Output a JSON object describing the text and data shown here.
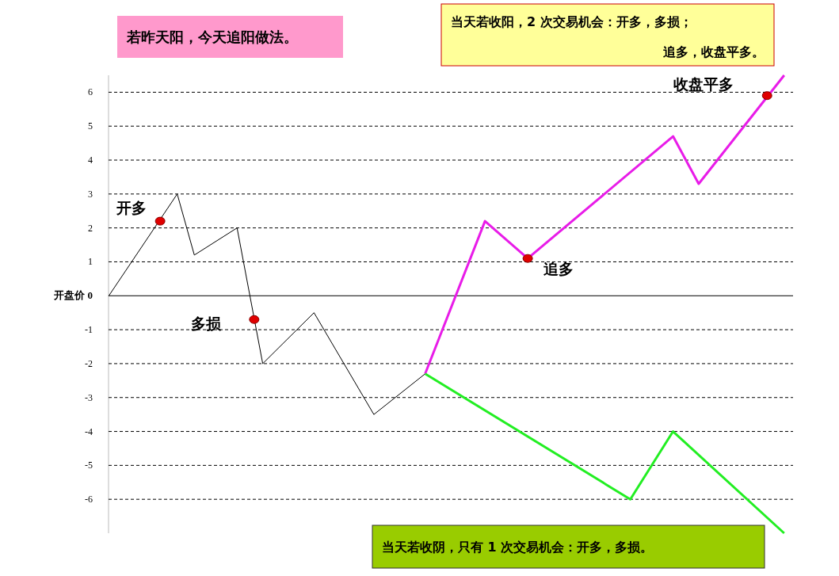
{
  "chart_data": {
    "type": "line",
    "title": "若昨天阳，今天追阳做法。",
    "annotations": [
      "当天若收阳，2 次交易机会：开多，多损；追多，收盘平多。",
      "当天若收阴，只有 1 次交易机会：开多，多损。",
      "开多",
      "多损",
      "追多",
      "收盘平多"
    ],
    "categories": [
      null,
      null,
      null,
      null,
      null,
      null,
      null,
      null,
      null,
      null,
      null,
      null,
      null,
      null,
      null,
      null,
      null,
      null,
      null,
      null,
      null,
      null,
      null,
      null,
      null,
      null,
      null,
      null,
      null,
      null,
      null,
      null,
      null,
      null,
      null,
      null,
      null,
      null,
      null,
      null,
      null,
      null,
      null,
      null,
      null,
      null,
      null,
      null,
      null,
      null,
      null,
      null,
      null,
      null,
      null,
      null,
      null,
      null,
      null,
      null,
      null,
      null,
      null,
      null,
      null,
      null,
      null,
      null,
      null,
      null,
      null,
      null,
      null,
      null,
      null,
      null,
      null,
      null,
      null,
      null,
      null
    ],
    "series": [
      {
        "color": "#000000",
        "values": [
          0,
          null,
          null,
          null,
          null,
          null,
          null,
          null,
          3,
          null,
          1.2,
          null,
          null,
          null,
          null,
          2,
          null,
          null,
          -2,
          null,
          null,
          null,
          null,
          null,
          -0.5,
          null,
          null,
          null,
          null,
          null,
          null,
          -3.5,
          null,
          null,
          null,
          null,
          null,
          -2.3,
          null,
          null,
          null,
          null,
          null,
          null,
          null,
          null,
          null,
          null,
          null,
          null,
          null,
          null,
          null,
          null,
          null,
          null,
          null,
          null,
          null,
          null,
          null,
          null,
          null,
          null,
          null,
          null,
          null,
          null,
          null,
          null,
          null,
          null,
          null,
          null,
          null,
          null,
          null,
          null,
          null,
          null,
          null
        ]
      },
      {
        "color": "#e81ce8",
        "values": [
          null,
          null,
          null,
          null,
          null,
          null,
          null,
          null,
          null,
          null,
          null,
          null,
          null,
          null,
          null,
          null,
          null,
          null,
          null,
          null,
          null,
          null,
          null,
          null,
          null,
          null,
          null,
          null,
          null,
          null,
          null,
          null,
          null,
          null,
          null,
          null,
          null,
          -2.3,
          null,
          null,
          null,
          null,
          null,
          null,
          2.2,
          null,
          null,
          null,
          null,
          1.1,
          null,
          null,
          null,
          null,
          null,
          null,
          null,
          null,
          null,
          null,
          null,
          null,
          null,
          null,
          null,
          null,
          4.7,
          null,
          null,
          3.3,
          null,
          null,
          null,
          null,
          null,
          null,
          null,
          null,
          null,
          6.5,
          null
        ]
      },
      {
        "color": "#22ee22",
        "values": [
          null,
          null,
          null,
          null,
          null,
          null,
          null,
          null,
          null,
          null,
          null,
          null,
          null,
          null,
          null,
          null,
          null,
          null,
          null,
          null,
          null,
          null,
          null,
          null,
          null,
          null,
          null,
          null,
          null,
          null,
          null,
          null,
          null,
          null,
          null,
          null,
          null,
          -2.3,
          null,
          null,
          null,
          null,
          null,
          null,
          null,
          null,
          null,
          null,
          null,
          null,
          null,
          null,
          null,
          null,
          null,
          null,
          null,
          null,
          null,
          null,
          null,
          -6,
          null,
          null,
          null,
          null,
          -4,
          null,
          null,
          null,
          null,
          null,
          null,
          null,
          null,
          null,
          null,
          null,
          null,
          -7,
          null
        ]
      },
      {
        "type": "scatter",
        "color": "#e00000",
        "values": [
          null,
          null,
          null,
          null,
          null,
          null,
          2.2,
          null,
          null,
          null,
          null,
          null,
          null,
          null,
          null,
          null,
          null,
          -0.7,
          null,
          null,
          null,
          null,
          null,
          null,
          null,
          null,
          null,
          null,
          null,
          null,
          null,
          null,
          null,
          null,
          null,
          null,
          null,
          null,
          null,
          null,
          null,
          null,
          null,
          null,
          null,
          null,
          null,
          null,
          null,
          1.1,
          null,
          null,
          null,
          null,
          null,
          null,
          null,
          null,
          null,
          null,
          null,
          null,
          null,
          null,
          null,
          null,
          null,
          null,
          null,
          null,
          null,
          null,
          null,
          null,
          null,
          null,
          null,
          5.9,
          null,
          null,
          null
        ]
      }
    ],
    "ylim": [
      -7,
      6.5
    ],
    "yticks": [
      6,
      5,
      4,
      3,
      2,
      1,
      {
        "value": 0,
        "label": "开盘价 0"
      },
      -1,
      -2,
      -3,
      -4,
      -5,
      -6
    ],
    "grid": "y",
    "tick_labels": "y",
    "line_style": "solid"
  }
}
